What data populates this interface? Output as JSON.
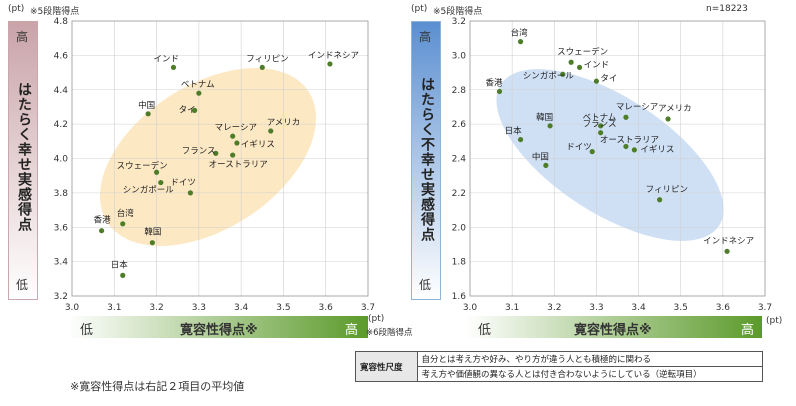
{
  "charts": [
    {
      "unit_y": "(pt)",
      "scale_note_y": "※5段階得点",
      "ylabel": "はたらく幸せ実感得点",
      "yhigh": "高",
      "ylow": "低",
      "xlabel": "寛容性得点※",
      "xlow": "低",
      "xhigh": "高",
      "unit_x": "(pt)",
      "scale_note_x": "※6段階得点",
      "xticks": [
        "3.0",
        "3.1",
        "3.2",
        "3.3",
        "3.4",
        "3.5",
        "3.6",
        "3.7"
      ],
      "yticks": [
        "3.2",
        "3.4",
        "3.6",
        "3.8",
        "4.0",
        "4.2",
        "4.4",
        "4.6",
        "4.8"
      ],
      "n_label": ""
    },
    {
      "unit_y": "(pt)",
      "scale_note_y": "※5段階得点",
      "ylabel": "はたらく不幸せ実感得点",
      "yhigh": "高",
      "ylow": "低",
      "xlabel": "寛容性得点※",
      "xlow": "低",
      "xhigh": "高",
      "unit_x": "(pt)",
      "scale_note_x": "",
      "xticks": [
        "3.0",
        "3.1",
        "3.2",
        "3.3",
        "3.4",
        "3.5",
        "3.6",
        "3.7"
      ],
      "yticks": [
        "1.6",
        "1.8",
        "2.0",
        "2.2",
        "2.4",
        "2.6",
        "2.8",
        "3.0",
        "3.2"
      ],
      "n_label": "n=18223"
    }
  ],
  "chart_data": [
    {
      "type": "scatter",
      "title": "",
      "xlabel": "寛容性得点",
      "ylabel": "はたらく幸せ実感得点",
      "xlim": [
        3.0,
        3.7
      ],
      "ylim": [
        3.2,
        4.8
      ],
      "grid": true,
      "points": [
        {
          "label": "インド",
          "x": 3.24,
          "y": 4.53
        },
        {
          "label": "フィリピン",
          "x": 3.45,
          "y": 4.53
        },
        {
          "label": "インドネシア",
          "x": 3.61,
          "y": 4.55
        },
        {
          "label": "ベトナム",
          "x": 3.3,
          "y": 4.38
        },
        {
          "label": "中国",
          "x": 3.18,
          "y": 4.26
        },
        {
          "label": "タイ",
          "x": 3.29,
          "y": 4.28
        },
        {
          "label": "マレーシア",
          "x": 3.38,
          "y": 4.13
        },
        {
          "label": "アメリカ",
          "x": 3.47,
          "y": 4.16
        },
        {
          "label": "イギリス",
          "x": 3.39,
          "y": 4.09
        },
        {
          "label": "フランス",
          "x": 3.34,
          "y": 4.03
        },
        {
          "label": "スウェーデン",
          "x": 3.2,
          "y": 3.92
        },
        {
          "label": "オーストラリア",
          "x": 3.38,
          "y": 4.02
        },
        {
          "label": "ドイツ",
          "x": 3.28,
          "y": 3.8
        },
        {
          "label": "シンガポール",
          "x": 3.21,
          "y": 3.86
        },
        {
          "label": "香港",
          "x": 3.07,
          "y": 3.58
        },
        {
          "label": "台湾",
          "x": 3.12,
          "y": 3.62
        },
        {
          "label": "韓国",
          "x": 3.19,
          "y": 3.51
        },
        {
          "label": "日本",
          "x": 3.12,
          "y": 3.32
        }
      ]
    },
    {
      "type": "scatter",
      "title": "",
      "xlabel": "寛容性得点",
      "ylabel": "はたらく不幸せ実感得点",
      "xlim": [
        3.0,
        3.7
      ],
      "ylim": [
        1.6,
        3.2
      ],
      "grid": true,
      "points": [
        {
          "label": "台湾",
          "x": 3.12,
          "y": 3.08
        },
        {
          "label": "スウェーデン",
          "x": 3.24,
          "y": 2.96
        },
        {
          "label": "インド",
          "x": 3.26,
          "y": 2.93
        },
        {
          "label": "シンガポール",
          "x": 3.22,
          "y": 2.89
        },
        {
          "label": "タイ",
          "x": 3.3,
          "y": 2.85
        },
        {
          "label": "香港",
          "x": 3.07,
          "y": 2.79
        },
        {
          "label": "韓国",
          "x": 3.19,
          "y": 2.59
        },
        {
          "label": "日本",
          "x": 3.12,
          "y": 2.51
        },
        {
          "label": "ベトナム",
          "x": 3.31,
          "y": 2.59
        },
        {
          "label": "マレーシア",
          "x": 3.37,
          "y": 2.64
        },
        {
          "label": "アメリカ",
          "x": 3.47,
          "y": 2.63
        },
        {
          "label": "フランス",
          "x": 3.31,
          "y": 2.55
        },
        {
          "label": "オーストラリア",
          "x": 3.37,
          "y": 2.47
        },
        {
          "label": "ドイツ",
          "x": 3.29,
          "y": 2.44
        },
        {
          "label": "イギリス",
          "x": 3.39,
          "y": 2.45
        },
        {
          "label": "中国",
          "x": 3.18,
          "y": 2.36
        },
        {
          "label": "フィリピン",
          "x": 3.45,
          "y": 2.16
        },
        {
          "label": "インドネシア",
          "x": 3.61,
          "y": 1.86
        }
      ]
    }
  ],
  "colors": {
    "dot": "#4e7d2a",
    "ellipse_left": "#fde8c4",
    "ellipse_right": "#cfe0f5",
    "grid": "#d0d0d0",
    "ylabel_grad_left_top": "#c9a3a8",
    "ylabel_grad_left_bottom": "#ffffff",
    "ylabel_grad_right_top": "#5b8fd1",
    "ylabel_grad_right_bottom": "#ffffff",
    "xlabel_grad_start": "#ffffff",
    "xlabel_grad_end": "#5b9a2a"
  },
  "footnote": "※寛容性得点は右記２項目の平均値",
  "legend_table": {
    "header": "寛容性尺度",
    "rows": [
      "自分とは考え方や好み、やり方が違う人とも積極的に関わる",
      "考え方や価値観の異なる人とは付き合わないようにしている（逆転項目）"
    ]
  }
}
